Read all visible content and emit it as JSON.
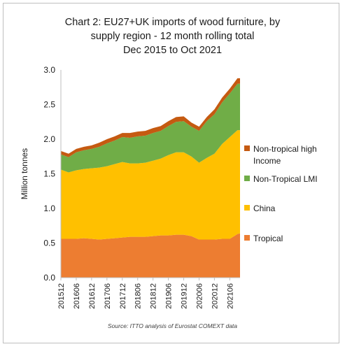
{
  "chart_data": {
    "type": "area",
    "stacked": true,
    "title_lines": [
      "Chart 2: EU27+UK imports of wood furniture, by",
      "supply region - 12 month rolling total",
      "Dec 2015 to Oct 2021"
    ],
    "ylabel": "Million tonnes",
    "ylim": [
      0,
      3.0
    ],
    "yticks": [
      "0.0",
      "0.5",
      "1.0",
      "1.5",
      "2.0",
      "2.5",
      "3.0"
    ],
    "xtick_labels": [
      "201512",
      "201606",
      "201612",
      "201706",
      "201712",
      "201806",
      "201812",
      "201906",
      "201912",
      "202006",
      "202012",
      "202106"
    ],
    "grid": false,
    "legend_position": "right",
    "x": [
      "201512",
      "201603",
      "201606",
      "201609",
      "201612",
      "201703",
      "201706",
      "201709",
      "201712",
      "201803",
      "201806",
      "201809",
      "201812",
      "201903",
      "201906",
      "201909",
      "201912",
      "202003",
      "202006",
      "202009",
      "202012",
      "202103",
      "202106",
      "202109",
      "202110"
    ],
    "series": [
      {
        "name": "Tropical",
        "color": "#ED7D31",
        "values": [
          0.56,
          0.56,
          0.56,
          0.57,
          0.56,
          0.55,
          0.56,
          0.57,
          0.58,
          0.59,
          0.59,
          0.59,
          0.6,
          0.61,
          0.61,
          0.62,
          0.62,
          0.6,
          0.55,
          0.55,
          0.55,
          0.56,
          0.56,
          0.63,
          0.64
        ]
      },
      {
        "name": "China",
        "color": "#FFC000",
        "values": [
          1.0,
          0.96,
          0.99,
          1.0,
          1.02,
          1.04,
          1.05,
          1.07,
          1.09,
          1.06,
          1.06,
          1.07,
          1.09,
          1.11,
          1.16,
          1.19,
          1.19,
          1.15,
          1.11,
          1.18,
          1.24,
          1.37,
          1.47,
          1.5,
          1.49
        ]
      },
      {
        "name": "Non-Tropical LMI",
        "color": "#70AD47",
        "values": [
          0.22,
          0.22,
          0.26,
          0.27,
          0.28,
          0.3,
          0.33,
          0.34,
          0.36,
          0.37,
          0.39,
          0.39,
          0.4,
          0.4,
          0.42,
          0.44,
          0.45,
          0.43,
          0.46,
          0.53,
          0.57,
          0.6,
          0.63,
          0.67,
          0.67
        ]
      },
      {
        "name": "Non-tropical high Income",
        "color": "#C55A11",
        "values": [
          0.05,
          0.05,
          0.05,
          0.05,
          0.05,
          0.06,
          0.06,
          0.06,
          0.06,
          0.07,
          0.07,
          0.07,
          0.07,
          0.07,
          0.07,
          0.07,
          0.07,
          0.06,
          0.06,
          0.06,
          0.07,
          0.07,
          0.07,
          0.08,
          0.08
        ]
      }
    ],
    "legend": [
      "Non-tropical high Income",
      "Non-Tropical LMI",
      "China",
      "Tropical"
    ],
    "source": "Source: ITTO analysis of Eurostat COMEXT data"
  }
}
